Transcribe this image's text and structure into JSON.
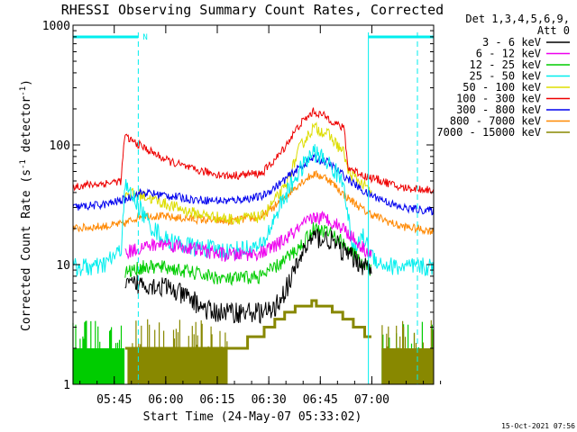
{
  "chart_data": {
    "type": "line",
    "title": "RHESSI Observing Summary Count Rates, Corrected",
    "xlabel": "Start Time (24-May-07 05:33:02)",
    "ylabel_main": "Corrected Count Rate (s",
    "ylabel_sup1": "-1",
    "ylabel_mid": " detector",
    "ylabel_sup2": "-1",
    "ylabel_end": ")",
    "y_scale": "log",
    "ylim": [
      1,
      1000
    ],
    "xlim_minutes_after_0533": [
      0,
      105
    ],
    "x_tick_minutes": [
      12,
      27,
      42,
      57,
      72,
      87
    ],
    "x_tick_labels": [
      "05:45",
      "06:00",
      "06:15",
      "06:30",
      "06:45",
      "07:00"
    ],
    "y_ticks": [
      1,
      10,
      100,
      1000
    ],
    "y_tick_labels": [
      "1",
      "10",
      "100",
      "1000"
    ],
    "legend_header": [
      "Det 1,3,4,5,6,9,",
      "Att 0"
    ],
    "flag_label": "N",
    "datestamp": "15-Oct-2021 07:56",
    "night_bars_minutes": [
      [
        0,
        19
      ],
      [
        86,
        105
      ]
    ],
    "series": [
      {
        "name": "3 - 6 keV",
        "color": "#000000",
        "noise": 0.09,
        "x": [
          0,
          14.6,
          15,
          20,
          27,
          35,
          40,
          50,
          58,
          63,
          67,
          70,
          75,
          80,
          87
        ],
        "y": [
          null,
          null,
          6.5,
          7,
          6.5,
          5,
          4,
          4,
          4,
          7,
          13,
          17,
          16,
          12,
          9
        ]
      },
      {
        "name": "6 - 12 keV",
        "color": "#ee00ee",
        "noise": 0.06,
        "x": [
          0,
          14.6,
          15,
          20,
          27,
          35,
          45,
          55,
          60,
          66,
          70,
          74,
          79,
          83,
          87
        ],
        "y": [
          null,
          null,
          12.5,
          14,
          15,
          13.5,
          12,
          12.5,
          15,
          20,
          25,
          24,
          20,
          15,
          12
        ]
      },
      {
        "name": "12 - 25 keV",
        "color": "#00cc00",
        "noise": 0.06,
        "x": [
          0,
          14.6,
          15,
          20,
          27,
          35,
          45,
          55,
          60,
          66,
          70,
          74,
          79,
          83,
          87
        ],
        "y": [
          null,
          null,
          8.5,
          9.5,
          9.5,
          8.5,
          7.5,
          8,
          10,
          14,
          20,
          19,
          15,
          11,
          9
        ]
      },
      {
        "name": "25 - 50 keV",
        "color": "#00eeee",
        "noise": 0.08,
        "x": [
          0,
          8,
          14,
          15,
          18,
          22,
          27,
          35,
          45,
          55,
          60,
          65,
          70,
          74,
          79,
          80,
          82,
          84,
          87,
          90,
          95,
          105
        ],
        "y": [
          9.5,
          9.5,
          13,
          45,
          35,
          22,
          16,
          14,
          13,
          14,
          30,
          55,
          88,
          72,
          48,
          25,
          12,
          18,
          12,
          10,
          9.5,
          9.5
        ]
      },
      {
        "name": "50 - 100 keV",
        "color": "#dddd00",
        "noise": 0.05,
        "x": [
          0,
          14.6,
          15,
          20,
          27,
          35,
          45,
          55,
          62,
          66,
          70,
          74,
          79,
          80,
          87
        ],
        "y": [
          null,
          null,
          40,
          38,
          32,
          27,
          24,
          25,
          45,
          95,
          140,
          125,
          85,
          60,
          40
        ]
      },
      {
        "name": "100 - 300 keV",
        "color": "#ee0000",
        "noise": 0.035,
        "x": [
          0,
          10,
          14,
          15,
          18,
          22,
          27,
          35,
          45,
          55,
          60,
          66,
          70,
          74,
          79,
          80,
          85,
          90,
          95,
          105
        ],
        "y": [
          45,
          48,
          50,
          118,
          105,
          90,
          75,
          62,
          55,
          58,
          82,
          148,
          190,
          170,
          135,
          65,
          55,
          50,
          44,
          42
        ]
      },
      {
        "name": "300 - 800 keV",
        "color": "#0000ee",
        "noise": 0.035,
        "x": [
          0,
          10,
          15,
          20,
          27,
          35,
          45,
          55,
          60,
          66,
          70,
          74,
          79,
          85,
          90,
          95,
          105
        ],
        "y": [
          30,
          32,
          35,
          40,
          38,
          35,
          34,
          37,
          47,
          65,
          78,
          72,
          55,
          40,
          35,
          30,
          28
        ]
      },
      {
        "name": "800 - 7000 keV",
        "color": "#ff8800",
        "noise": 0.035,
        "x": [
          0,
          10,
          15,
          20,
          27,
          35,
          45,
          55,
          60,
          66,
          70,
          74,
          79,
          85,
          90,
          95,
          105
        ],
        "y": [
          20,
          21,
          22,
          26,
          25,
          24,
          23,
          25,
          33,
          48,
          57,
          53,
          38,
          28,
          24,
          21,
          19
        ]
      },
      {
        "name": "7000 - 15000 keV",
        "color": "#888800",
        "noise": 0.0,
        "x": [
          0,
          14.6,
          15,
          27,
          35,
          42,
          46,
          50,
          54,
          57,
          60,
          63,
          66,
          70,
          74,
          77,
          80,
          83,
          87
        ],
        "y": [
          null,
          null,
          1.8,
          1.8,
          1.8,
          1.8,
          2,
          2.2,
          2.5,
          3,
          3.5,
          4,
          4.5,
          4.8,
          4.5,
          4,
          3.5,
          3,
          2.5
        ]
      }
    ],
    "green_noise_segments_minutes": [
      [
        0,
        15
      ],
      [
        90,
        105
      ]
    ],
    "olive_noise_segments_minutes": [
      [
        16,
        45
      ],
      [
        90,
        105
      ]
    ]
  }
}
